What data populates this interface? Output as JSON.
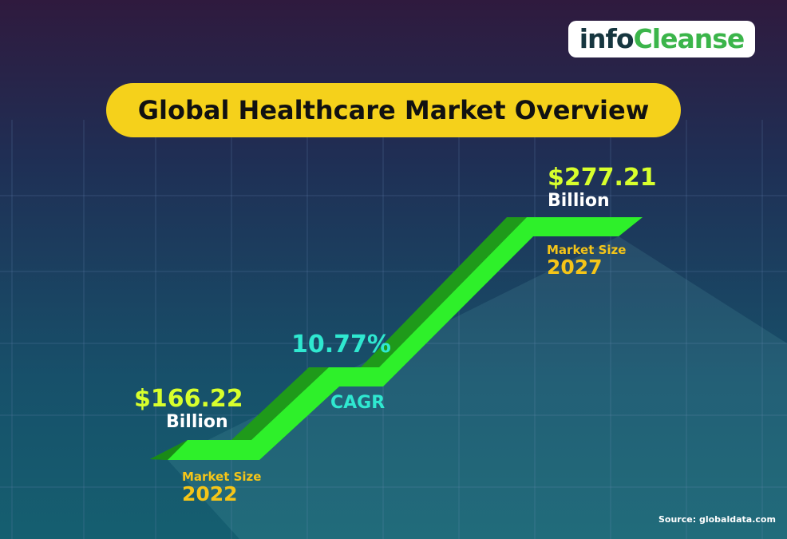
{
  "logo": {
    "part1": "info",
    "part2": "Cleanse"
  },
  "title": "Global Healthcare Market Overview",
  "start": {
    "value": "$166.22",
    "unit": "Billion",
    "label": "Market Size",
    "year": "2022"
  },
  "growth": {
    "value": "10.77%",
    "label": "CAGR"
  },
  "end": {
    "value": "$277.21",
    "unit": "Billion",
    "label": "Market Size",
    "year": "2027"
  },
  "source": "Source: globaldata.com"
}
